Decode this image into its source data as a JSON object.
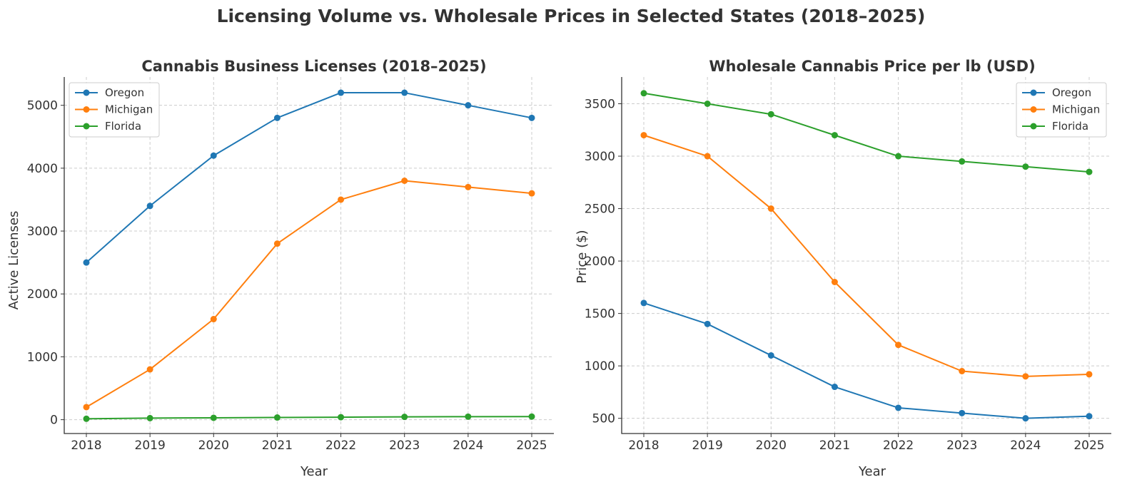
{
  "figure": {
    "title": "Licensing Volume vs. Wholesale Prices in Selected States (2018–2025)"
  },
  "chart_data": [
    {
      "type": "line",
      "title": "Cannabis Business Licenses (2018–2025)",
      "xlabel": "Year",
      "ylabel": "Active Licenses",
      "x": [
        2018,
        2019,
        2020,
        2021,
        2022,
        2023,
        2024,
        2025
      ],
      "ylim": [
        -220,
        5450
      ],
      "yticks": [
        0,
        1000,
        2000,
        3000,
        4000,
        5000
      ],
      "grid": true,
      "legend_position": "top-left",
      "series": [
        {
          "name": "Oregon",
          "color": "#1f77b4",
          "values": [
            2500,
            3400,
            4200,
            4800,
            5200,
            5200,
            5000,
            4800
          ]
        },
        {
          "name": "Michigan",
          "color": "#ff7f0e",
          "values": [
            200,
            800,
            1600,
            2800,
            3500,
            3800,
            3700,
            3600
          ]
        },
        {
          "name": "Florida",
          "color": "#2ca02c",
          "values": [
            15,
            25,
            30,
            35,
            40,
            45,
            48,
            50
          ]
        }
      ]
    },
    {
      "type": "line",
      "title": "Wholesale Cannabis Price per lb (USD)",
      "xlabel": "Year",
      "ylabel": "Price ($)",
      "x": [
        2018,
        2019,
        2020,
        2021,
        2022,
        2023,
        2024,
        2025
      ],
      "ylim": [
        355,
        3755
      ],
      "yticks": [
        500,
        1000,
        1500,
        2000,
        2500,
        3000,
        3500
      ],
      "grid": true,
      "legend_position": "top-right",
      "series": [
        {
          "name": "Oregon",
          "color": "#1f77b4",
          "values": [
            1600,
            1400,
            1100,
            800,
            600,
            550,
            500,
            520
          ]
        },
        {
          "name": "Michigan",
          "color": "#ff7f0e",
          "values": [
            3200,
            3000,
            2500,
            1800,
            1200,
            950,
            900,
            920
          ]
        },
        {
          "name": "Florida",
          "color": "#2ca02c",
          "values": [
            3600,
            3500,
            3400,
            3200,
            3000,
            2950,
            2900,
            2850
          ]
        }
      ]
    }
  ]
}
